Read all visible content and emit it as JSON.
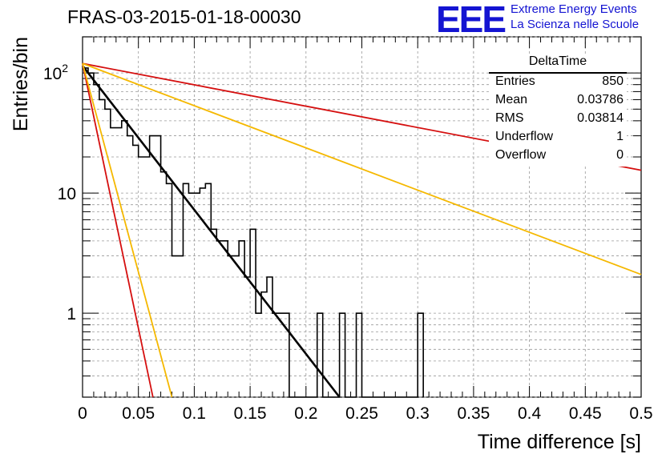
{
  "title": "FRAS-03-2015-01-18-00030",
  "logo": {
    "mark": "EEE",
    "line1": "Extreme Energy Events",
    "line2": "La Scienza nelle Scuole",
    "color": "#1414d2"
  },
  "stats_box": {
    "name": "DeltaTime",
    "rows": [
      {
        "label": "Entries",
        "value": "850"
      },
      {
        "label": "Mean",
        "value": "0.03786"
      },
      {
        "label": "RMS",
        "value": "0.03814"
      },
      {
        "label": "Underflow",
        "value": "1"
      },
      {
        "label": "Overflow",
        "value": "0"
      }
    ]
  },
  "chart_data": {
    "type": "histogram",
    "xlabel": "Time difference [s]",
    "ylabel": "Entries/bin",
    "xlim": [
      0,
      0.5
    ],
    "ylim": [
      0.2,
      200
    ],
    "y_scale": "log",
    "grid": true,
    "x_ticks": [
      "0",
      "0.05",
      "0.1",
      "0.15",
      "0.2",
      "0.25",
      "0.3",
      "0.35",
      "0.4",
      "0.45",
      "0.5"
    ],
    "y_ticks": [
      {
        "value": 1,
        "label": "1"
      },
      {
        "value": 10,
        "label": "10"
      },
      {
        "value": 100,
        "label": "10^2"
      }
    ],
    "bin_width": 0.005,
    "histogram_counts": [
      110,
      100,
      80,
      60,
      50,
      35,
      35,
      40,
      30,
      25,
      20,
      20,
      30,
      30,
      15,
      12,
      3,
      3,
      12,
      10,
      10,
      11,
      12,
      5,
      4,
      4,
      3,
      3,
      4,
      2,
      5,
      1,
      1.5,
      2,
      1,
      1,
      1,
      0.2,
      0,
      0,
      0.2,
      0,
      1,
      0,
      0,
      0,
      1,
      0,
      0,
      1,
      0,
      0,
      0,
      0,
      0,
      0,
      0,
      0,
      0,
      0,
      1
    ],
    "lines": [
      {
        "color": "#000000",
        "x": [
          0,
          0.23
        ],
        "y": [
          115,
          0.2
        ]
      },
      {
        "color": "#d50f0f",
        "x": [
          0,
          0.5
        ],
        "y": [
          120,
          15.5
        ]
      },
      {
        "color": "#f5b800",
        "x": [
          0,
          0.5
        ],
        "y": [
          120,
          2.1
        ]
      },
      {
        "color": "#d50f0f",
        "x": [
          0,
          0.063
        ],
        "y": [
          120,
          0.2
        ]
      },
      {
        "color": "#f5b800",
        "x": [
          0,
          0.08
        ],
        "y": [
          120,
          0.2
        ]
      }
    ]
  }
}
